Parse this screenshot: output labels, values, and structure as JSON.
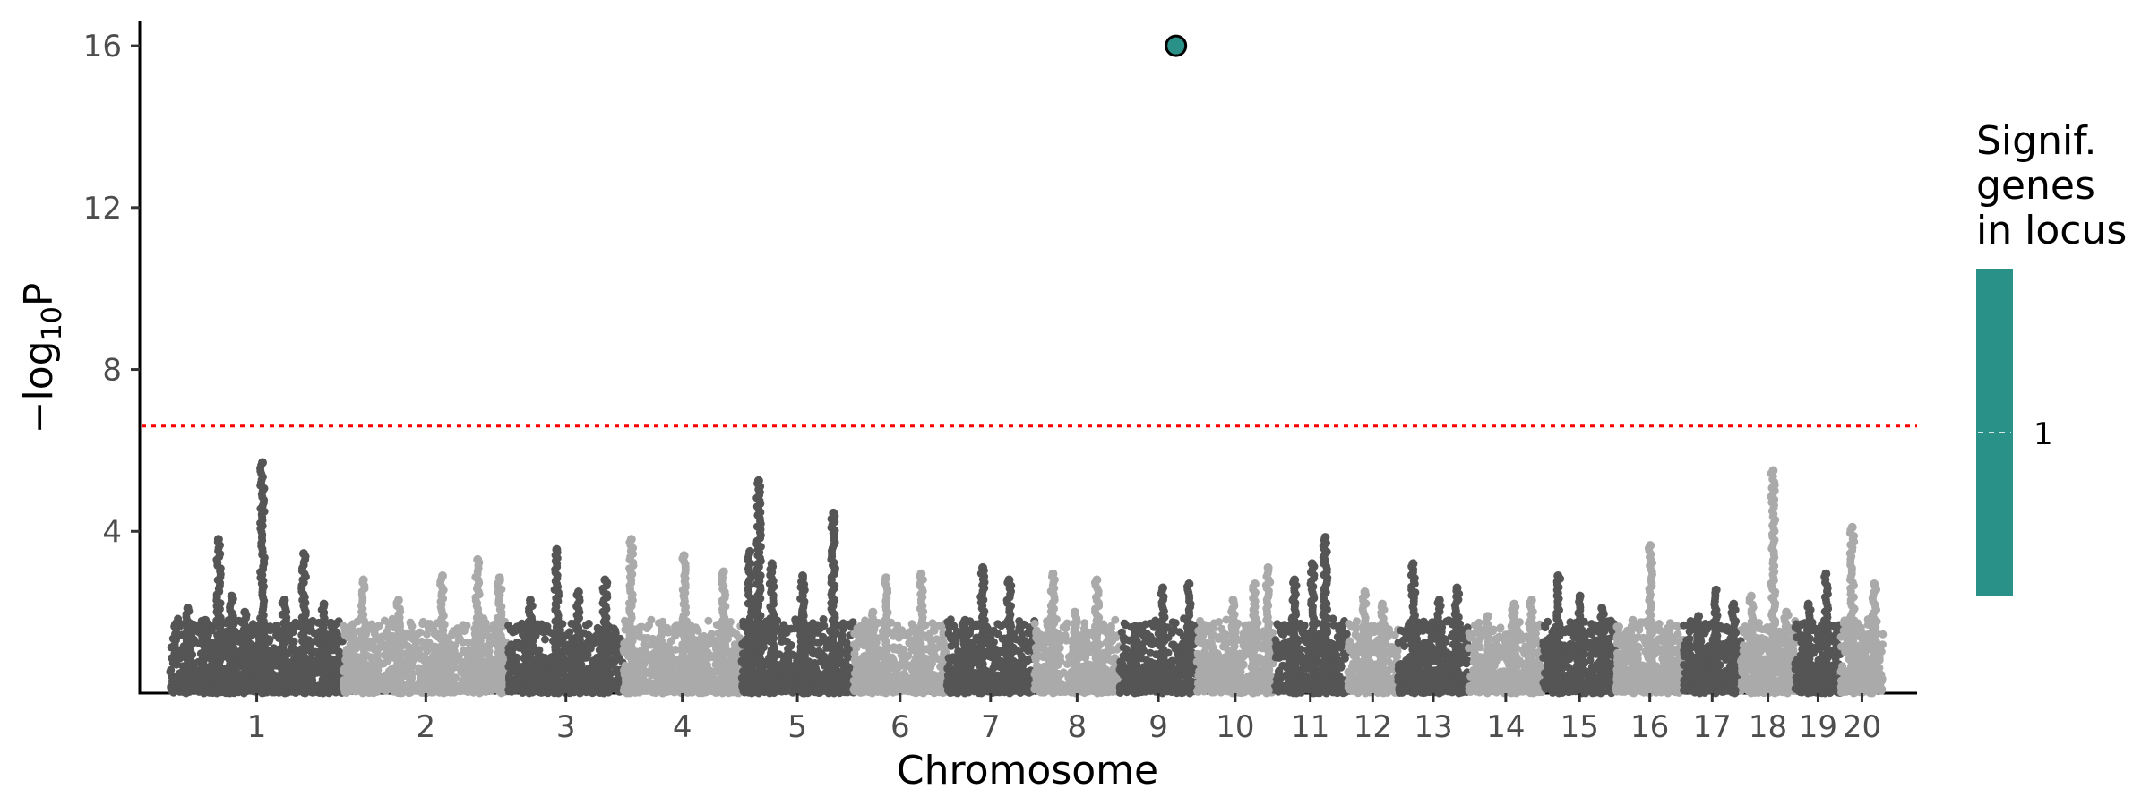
{
  "chart_data": {
    "type": "scatter",
    "title": "",
    "xlabel": "Chromosome",
    "ylabel_main": "−log",
    "ylabel_sub": "10",
    "ylabel_tail": "P",
    "yticks": [
      4,
      8,
      12,
      16
    ],
    "ylim": [
      0,
      16.6
    ],
    "grid": false,
    "threshold": {
      "value": 6.6,
      "color": "#ff0000",
      "style": "dotted"
    },
    "point_colors": [
      "#555555",
      "#aaaaaa"
    ],
    "chromosomes": [
      {
        "label": "1",
        "start": 0,
        "end": 1.97
      },
      {
        "label": "2",
        "start": 1.97,
        "end": 3.85
      },
      {
        "label": "3",
        "start": 3.85,
        "end": 5.16
      },
      {
        "label": "4",
        "start": 5.16,
        "end": 6.5
      },
      {
        "label": "5",
        "start": 6.5,
        "end": 7.78
      },
      {
        "label": "6",
        "start": 7.78,
        "end": 8.84
      },
      {
        "label": "7",
        "start": 8.84,
        "end": 9.84
      },
      {
        "label": "8",
        "start": 9.84,
        "end": 10.81
      },
      {
        "label": "9",
        "start": 10.81,
        "end": 11.69
      },
      {
        "label": "10",
        "start": 11.69,
        "end": 12.56
      },
      {
        "label": "11",
        "start": 12.56,
        "end": 13.4
      },
      {
        "label": "12",
        "start": 13.4,
        "end": 13.98
      },
      {
        "label": "13",
        "start": 13.98,
        "end": 14.78
      },
      {
        "label": "14",
        "start": 14.78,
        "end": 15.63
      },
      {
        "label": "15",
        "start": 15.63,
        "end": 16.46
      },
      {
        "label": "16",
        "start": 16.46,
        "end": 17.23
      },
      {
        "label": "17",
        "start": 17.23,
        "end": 17.88
      },
      {
        "label": "18",
        "start": 17.88,
        "end": 18.5
      },
      {
        "label": "19",
        "start": 18.5,
        "end": 19.02
      },
      {
        "label": "20",
        "start": 19.02,
        "end": 19.5
      }
    ],
    "peaks": [
      {
        "x": 0.2,
        "y": 2.1
      },
      {
        "x": 0.4,
        "y": 1.8
      },
      {
        "x": 0.55,
        "y": 3.8
      },
      {
        "x": 0.7,
        "y": 2.4
      },
      {
        "x": 0.85,
        "y": 2.0
      },
      {
        "x": 1.05,
        "y": 5.7
      },
      {
        "x": 1.3,
        "y": 2.3
      },
      {
        "x": 1.52,
        "y": 3.45
      },
      {
        "x": 1.75,
        "y": 2.2
      },
      {
        "x": 2.2,
        "y": 2.8
      },
      {
        "x": 2.6,
        "y": 2.3
      },
      {
        "x": 3.1,
        "y": 2.9
      },
      {
        "x": 3.5,
        "y": 3.3
      },
      {
        "x": 3.75,
        "y": 2.85
      },
      {
        "x": 4.1,
        "y": 2.3
      },
      {
        "x": 4.4,
        "y": 3.55
      },
      {
        "x": 4.65,
        "y": 2.5
      },
      {
        "x": 4.95,
        "y": 2.8
      },
      {
        "x": 5.25,
        "y": 3.8
      },
      {
        "x": 5.6,
        "y": 1.6
      },
      {
        "x": 5.85,
        "y": 3.4
      },
      {
        "x": 6.3,
        "y": 3.0
      },
      {
        "x": 6.6,
        "y": 3.5
      },
      {
        "x": 6.7,
        "y": 5.25
      },
      {
        "x": 6.85,
        "y": 3.2
      },
      {
        "x": 7.2,
        "y": 2.9
      },
      {
        "x": 7.55,
        "y": 4.45
      },
      {
        "x": 7.2,
        "y": 2.0
      },
      {
        "x": 8.0,
        "y": 2.0
      },
      {
        "x": 8.15,
        "y": 2.85
      },
      {
        "x": 8.55,
        "y": 2.95
      },
      {
        "x": 9.05,
        "y": 1.8
      },
      {
        "x": 9.25,
        "y": 3.1
      },
      {
        "x": 9.55,
        "y": 2.8
      },
      {
        "x": 10.05,
        "y": 2.95
      },
      {
        "x": 10.3,
        "y": 2.0
      },
      {
        "x": 10.55,
        "y": 2.8
      },
      {
        "x": 11.0,
        "y": 1.3
      },
      {
        "x": 11.3,
        "y": 2.6
      },
      {
        "x": 11.6,
        "y": 2.7
      },
      {
        "x": 12.1,
        "y": 2.3
      },
      {
        "x": 12.35,
        "y": 2.7
      },
      {
        "x": 12.5,
        "y": 3.1
      },
      {
        "x": 12.8,
        "y": 2.8
      },
      {
        "x": 13.0,
        "y": 3.2
      },
      {
        "x": 13.15,
        "y": 3.85
      },
      {
        "x": 13.6,
        "y": 2.5
      },
      {
        "x": 13.8,
        "y": 2.2
      },
      {
        "x": 14.15,
        "y": 3.2
      },
      {
        "x": 14.45,
        "y": 2.3
      },
      {
        "x": 14.65,
        "y": 2.6
      },
      {
        "x": 15.0,
        "y": 1.9
      },
      {
        "x": 15.3,
        "y": 2.2
      },
      {
        "x": 15.5,
        "y": 2.3
      },
      {
        "x": 15.8,
        "y": 2.9
      },
      {
        "x": 16.05,
        "y": 2.4
      },
      {
        "x": 16.3,
        "y": 2.1
      },
      {
        "x": 16.65,
        "y": 1.8
      },
      {
        "x": 16.85,
        "y": 3.65
      },
      {
        "x": 17.05,
        "y": 1.6
      },
      {
        "x": 17.4,
        "y": 1.9
      },
      {
        "x": 17.6,
        "y": 2.55
      },
      {
        "x": 17.8,
        "y": 2.2
      },
      {
        "x": 18.0,
        "y": 2.4
      },
      {
        "x": 18.25,
        "y": 5.5
      },
      {
        "x": 18.4,
        "y": 2.0
      },
      {
        "x": 18.65,
        "y": 2.2
      },
      {
        "x": 18.85,
        "y": 2.95
      },
      {
        "x": 19.15,
        "y": 4.1
      },
      {
        "x": 19.4,
        "y": 2.7
      }
    ],
    "highlight": {
      "x": 11.45,
      "y": 16.0,
      "color": "#2a9188"
    },
    "legend": {
      "title_lines": [
        "Signif.",
        "genes",
        "in locus"
      ],
      "value_label": "1",
      "color": "#2a9188"
    }
  }
}
